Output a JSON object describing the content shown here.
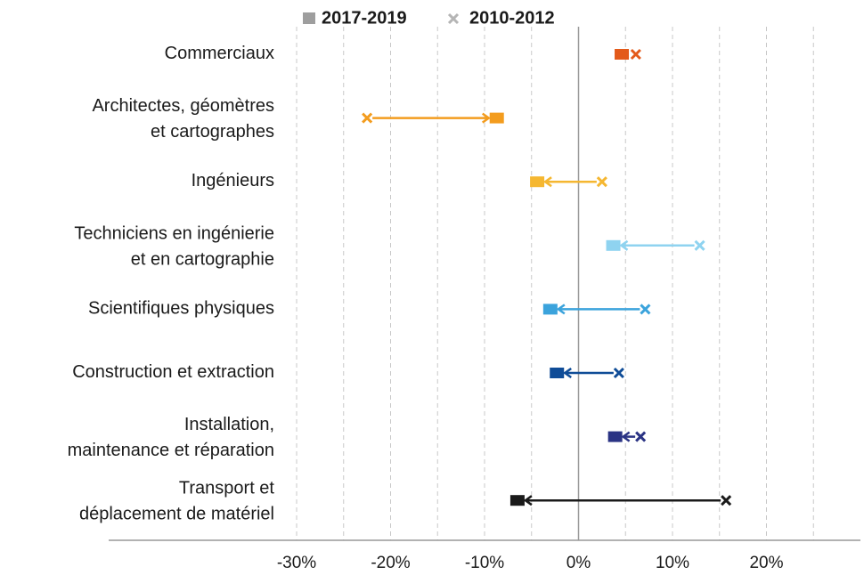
{
  "chart_data": {
    "type": "dumbbell",
    "categories": [
      [
        "Commerciaux"
      ],
      [
        "Architectes, géomètres",
        "et cartographes"
      ],
      [
        "Ingénieurs"
      ],
      [
        "Techniciens en ingénierie",
        "et en cartographie"
      ],
      [
        "Scientifiques physiques"
      ],
      [
        "Construction et extraction"
      ],
      [
        "Installation,",
        "maintenance et réparation"
      ],
      [
        "Transport et",
        "déplacement de matériel"
      ]
    ],
    "colors": [
      "#e35a1a",
      "#f39c1e",
      "#f5b731",
      "#8fd3f0",
      "#3ba3dc",
      "#0f4c97",
      "#2a3384",
      "#1a1a1a"
    ],
    "series": [
      {
        "name": "2017-2019",
        "color": "#9e9e9e",
        "values": [
          4.6,
          -8.7,
          -4.4,
          3.7,
          -3.0,
          -2.3,
          3.9,
          -6.5
        ]
      },
      {
        "name": "2010-2012",
        "color": "#b5b5b5",
        "values": [
          6.1,
          -22.5,
          2.5,
          12.9,
          7.1,
          4.3,
          6.6,
          15.7
        ]
      }
    ],
    "xlim": [
      -50,
      30
    ],
    "xticks": [
      {
        "value": -30,
        "label": "-30%"
      },
      {
        "value": -20,
        "label": "-20%"
      },
      {
        "value": -10,
        "label": "-10%"
      },
      {
        "value": 0,
        "label": "0%"
      },
      {
        "value": 10,
        "label": "10%"
      },
      {
        "value": 20,
        "label": "20%"
      }
    ],
    "minor_xticks": [
      -25,
      -15,
      -5,
      5,
      15,
      25
    ],
    "grid": true
  }
}
